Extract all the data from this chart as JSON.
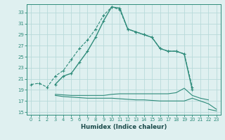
{
  "xlabel": "Humidex (Indice chaleur)",
  "x": [
    0,
    1,
    2,
    3,
    4,
    5,
    6,
    7,
    8,
    9,
    10,
    11,
    12,
    13,
    14,
    15,
    16,
    17,
    18,
    19,
    20,
    21,
    22,
    23
  ],
  "line1": [
    20.0,
    20.2,
    19.5,
    21.5,
    22.5,
    24.5,
    26.5,
    28.0,
    30.0,
    32.5,
    34.0,
    33.5,
    30.0,
    29.5,
    29.0,
    28.5,
    26.5,
    26.0,
    26.0,
    25.5,
    19.5,
    null,
    null,
    null
  ],
  "line2": [
    null,
    null,
    null,
    20.0,
    21.5,
    22.0,
    24.0,
    26.0,
    28.5,
    31.5,
    34.0,
    33.8,
    30.0,
    29.5,
    29.0,
    28.5,
    26.5,
    26.0,
    26.0,
    25.5,
    19.0,
    null,
    null,
    null
  ],
  "line3": [
    null,
    null,
    null,
    18.2,
    18.1,
    18.0,
    18.0,
    18.0,
    18.0,
    18.0,
    18.2,
    18.3,
    18.3,
    18.3,
    18.3,
    18.3,
    18.3,
    18.3,
    18.5,
    19.3,
    18.0,
    17.5,
    17.2,
    null
  ],
  "line4": [
    null,
    null,
    null,
    18.0,
    17.8,
    17.7,
    17.6,
    17.5,
    17.5,
    17.5,
    17.5,
    17.4,
    17.3,
    17.2,
    17.2,
    17.1,
    17.0,
    17.0,
    17.0,
    17.0,
    17.5,
    17.0,
    16.5,
    15.5
  ],
  "line5": [
    null,
    null,
    null,
    null,
    null,
    null,
    null,
    null,
    null,
    null,
    null,
    null,
    null,
    null,
    null,
    null,
    null,
    null,
    null,
    null,
    null,
    null,
    15.5,
    15.2
  ],
  "color": "#2e8b7a",
  "bg_color": "#dff0f0",
  "grid_color": "#b8dada",
  "ylim": [
    14.5,
    34.5
  ],
  "yticks": [
    15,
    17,
    19,
    21,
    23,
    25,
    27,
    29,
    31,
    33
  ],
  "xticks": [
    0,
    1,
    2,
    3,
    4,
    5,
    6,
    7,
    8,
    9,
    10,
    11,
    12,
    13,
    14,
    15,
    16,
    17,
    18,
    19,
    20,
    21,
    22,
    23
  ]
}
